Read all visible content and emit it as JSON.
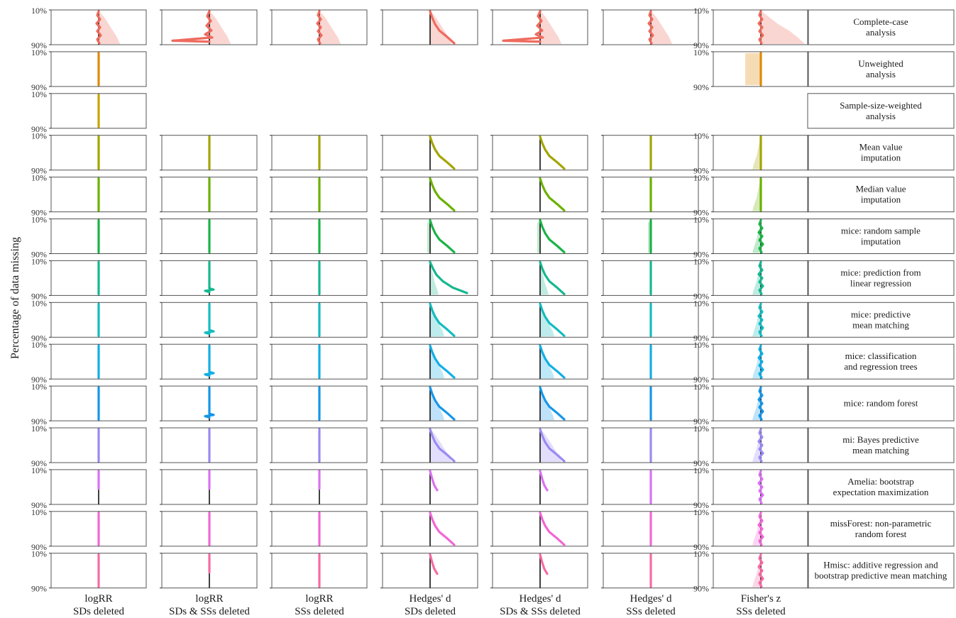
{
  "chart_data": {
    "type": "line",
    "ylabel": "Percentage of data missing",
    "y_ticks": [
      "10%",
      "90%"
    ],
    "grid": false,
    "columns": [
      "logRR\nSDs deleted",
      "logRR\nSDs & SSs deleted",
      "logRR\nSSs deleted",
      "Hedges' d\nSDs deleted",
      "Hedges' d\nSDs & SSs deleted",
      "Hedges' d\nSSs deleted",
      "Fisher's z\nSSs deleted"
    ],
    "rows": [
      {
        "label": "Complete-case\nanalysis",
        "color": "#ee6b5e",
        "patterns": [
          "w",
          "X",
          "w",
          "c",
          "X",
          "w",
          "w"
        ],
        "areas": [
          1,
          1,
          1,
          1,
          1,
          1,
          2
        ]
      },
      {
        "label": "Unweighted\nanalysis",
        "color": "#e08a0b",
        "patterns": [
          "s",
          "",
          "",
          "",
          "",
          "",
          "s"
        ],
        "areas": [
          0,
          0,
          0,
          0,
          0,
          0,
          3
        ]
      },
      {
        "label": "Sample-size-weighted\nanalysis",
        "color": "#c7a400",
        "patterns": [
          "s",
          "",
          "",
          "",
          "",
          "",
          ""
        ],
        "areas": [
          0,
          0,
          0,
          0,
          0,
          0,
          0
        ]
      },
      {
        "label": "Mean value\nimputation",
        "color": "#a3a500",
        "patterns": [
          "s",
          "s",
          "s",
          "c",
          "c",
          "s",
          "s"
        ],
        "areas": [
          0,
          0,
          0,
          0,
          0,
          0,
          4
        ]
      },
      {
        "label": "Median value\nimputation",
        "color": "#6bb100",
        "patterns": [
          "s",
          "s",
          "s",
          "c",
          "c",
          "s",
          "s"
        ],
        "areas": [
          0,
          0,
          0,
          0,
          0,
          0,
          4
        ]
      },
      {
        "label": "mice: random sample\nimputation",
        "color": "#1bb347",
        "patterns": [
          "s",
          "s",
          "s",
          "c",
          "c",
          "s",
          "w"
        ],
        "areas": [
          0,
          0,
          0,
          5,
          5,
          5,
          4
        ]
      },
      {
        "label": "mice: prediction from\nlinear regression",
        "color": "#16b890",
        "patterns": [
          "s",
          "k",
          "s",
          "C",
          "c",
          "s",
          "w"
        ],
        "areas": [
          0,
          0,
          0,
          6,
          6,
          0,
          4
        ]
      },
      {
        "label": "mice: predictive\nmean matching",
        "color": "#14bcc0",
        "patterns": [
          "s",
          "k",
          "s",
          "c",
          "c",
          "s",
          "w"
        ],
        "areas": [
          0,
          0,
          0,
          7,
          7,
          0,
          4
        ]
      },
      {
        "label": "mice: classification\nand regression trees",
        "color": "#12aee5",
        "patterns": [
          "s",
          "k",
          "s",
          "c",
          "c",
          "s",
          "w"
        ],
        "areas": [
          0,
          0,
          0,
          7,
          7,
          0,
          4
        ]
      },
      {
        "label": "mice: random forest",
        "color": "#1596e8",
        "patterns": [
          "s",
          "k",
          "s",
          "c",
          "c",
          "s",
          "w"
        ],
        "areas": [
          0,
          0,
          0,
          7,
          7,
          0,
          4
        ]
      },
      {
        "label": "mi: Bayes predictive\nmean matching",
        "color": "#9a8af2",
        "patterns": [
          "s",
          "s",
          "s",
          "c",
          "c",
          "s",
          "w"
        ],
        "areas": [
          0,
          0,
          0,
          1,
          1,
          0,
          4
        ]
      },
      {
        "label": "Amelia: bootstrap\nexpectation maximization",
        "color": "#da72f2",
        "patterns": [
          "p",
          "p",
          "p",
          "h",
          "h",
          "s",
          "w"
        ],
        "areas": [
          0,
          0,
          0,
          0,
          0,
          0,
          0
        ]
      },
      {
        "label": "missForest: non-parametric\nrandom forest",
        "color": "#f267d5",
        "patterns": [
          "s",
          "s",
          "s",
          "c",
          "c",
          "s",
          "w"
        ],
        "areas": [
          0,
          0,
          0,
          0,
          0,
          0,
          4
        ]
      },
      {
        "label": "Hmisc: additive regression and\nbootstrap predictive mean matching",
        "color": "#f76aa3",
        "patterns": [
          "s",
          "p",
          "s",
          "h",
          "h",
          "s",
          "w"
        ],
        "areas": [
          0,
          0,
          0,
          0,
          0,
          0,
          4
        ]
      }
    ]
  }
}
